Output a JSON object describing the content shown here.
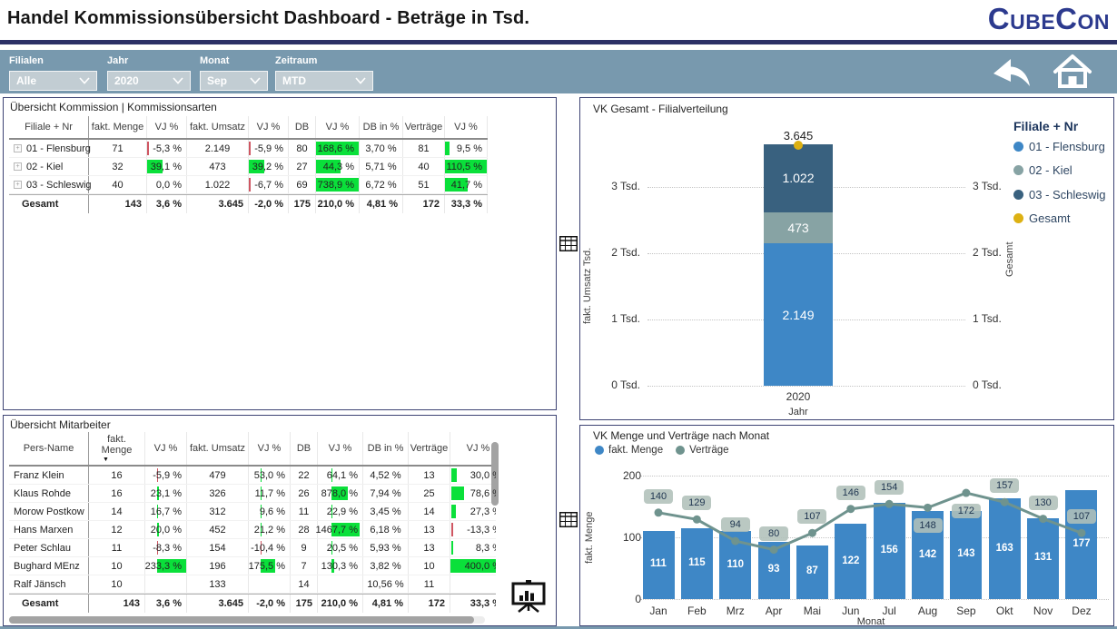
{
  "header": {
    "title": "Handel Kommissionsübersicht Dashboard - Beträge in Tsd.",
    "brand": "CubeCon"
  },
  "filters": [
    {
      "label": "Filialen",
      "value": "Alle"
    },
    {
      "label": "Jahr",
      "value": "2020"
    },
    {
      "label": "Monat",
      "value": "Sep"
    },
    {
      "label": "Zeitraum",
      "value": "MTD"
    }
  ],
  "table1": {
    "title": "Übersicht Kommission | Kommissionsarten",
    "columns": [
      "Filiale + Nr",
      "fakt. Menge",
      "VJ %",
      "fakt. Umsatz",
      "VJ %",
      "DB",
      "VJ %",
      "DB in %",
      "Verträge",
      "VJ %"
    ],
    "rows": [
      {
        "name": "01 - Flensburg",
        "cells": [
          "71",
          {
            "v": "-5,3 %",
            "b": [
              "red",
              0,
              5
            ]
          },
          "2.149",
          {
            "v": "-5,9 %",
            "b": [
              "red",
              0,
              5
            ]
          },
          "80",
          {
            "v": "168,6 %",
            "b": [
              "green",
              0,
              100
            ]
          },
          "3,70 %",
          "81",
          {
            "v": "9,5 %",
            "b": [
              "green",
              1,
              10
            ]
          }
        ]
      },
      {
        "name": "02 - Kiel",
        "cells": [
          "32",
          {
            "v": "39,1 %",
            "b": [
              "green",
              0,
              40
            ]
          },
          "473",
          {
            "v": "39,2 %",
            "b": [
              "green",
              0,
              40
            ]
          },
          "27",
          {
            "v": "44,3 %",
            "b": [
              "green",
              0,
              58
            ]
          },
          "5,71 %",
          "40",
          {
            "v": "110,5 %",
            "b": [
              "green",
              0,
              100
            ]
          }
        ]
      },
      {
        "name": "03 - Schleswig",
        "cells": [
          "40",
          {
            "v": "0,0 %"
          },
          "1.022",
          {
            "v": "-6,7 %",
            "b": [
              "red",
              0,
              5
            ]
          },
          "69",
          {
            "v": "738,9 %",
            "b": [
              "green",
              0,
              100
            ]
          },
          "6,72 %",
          "51",
          {
            "v": "41,7 %",
            "b": [
              "green",
              0,
              55
            ]
          }
        ]
      }
    ],
    "total": [
      "Gesamt",
      "143",
      "3,6 %",
      "3.645",
      "-2,0 %",
      "175",
      "210,0 %",
      "4,81 %",
      "172",
      "33,3 %"
    ]
  },
  "table2": {
    "title": "Übersicht Mitarbeiter",
    "columns": [
      "Pers-Name",
      "fakt. Menge",
      "VJ %",
      "fakt. Umsatz",
      "VJ %",
      "DB",
      "VJ %",
      "DB in %",
      "Verträge",
      "VJ %"
    ],
    "sort_column": "fakt. Menge",
    "rows": [
      {
        "name": "Franz Klein",
        "cells": [
          "16",
          {
            "v": "-5,9 %",
            "b": [
              "red",
              28,
              3
            ]
          },
          "479",
          {
            "v": "53,0 %",
            "b": [
              "green",
              28,
              4
            ]
          },
          "22",
          {
            "v": "64,1 %",
            "b": [
              "green",
              30,
              2
            ]
          },
          "4,52 %",
          "13",
          {
            "v": "30,0 %",
            "b": [
              "green",
              2,
              9
            ]
          }
        ]
      },
      {
        "name": "Klaus Rohde",
        "cells": [
          "16",
          {
            "v": "23,1 %",
            "b": [
              "green",
              28,
              5
            ]
          },
          "326",
          {
            "v": "11,7 %",
            "b": [
              "green",
              28,
              2
            ]
          },
          "26",
          {
            "v": "878,0 %",
            "b": [
              "green",
              30,
              38
            ]
          },
          "7,94 %",
          "25",
          {
            "v": "78,6 %",
            "b": [
              "green",
              2,
              22
            ]
          }
        ]
      },
      {
        "name": "Morow Postkow",
        "cells": [
          "14",
          {
            "v": "16,7 %",
            "b": [
              "green",
              28,
              4
            ]
          },
          "312",
          {
            "v": "9,6 %",
            "b": [
              "green",
              28,
              2
            ]
          },
          "11",
          {
            "v": "22,9 %",
            "b": [
              "green",
              30,
              2
            ]
          },
          "3,45 %",
          "14",
          {
            "v": "27,3 %",
            "b": [
              "green",
              2,
              8
            ]
          }
        ]
      },
      {
        "name": "Hans Marxen",
        "cells": [
          "12",
          {
            "v": "20,0 %",
            "b": [
              "green",
              28,
              5
            ]
          },
          "452",
          {
            "v": "21,2 %",
            "b": [
              "green",
              28,
              3
            ]
          },
          "28",
          {
            "v": "1467,7 %",
            "b": [
              "green",
              30,
              64
            ]
          },
          "6,18 %",
          "13",
          {
            "v": "-13,3 %",
            "b": [
              "red",
              2,
              3
            ]
          }
        ]
      },
      {
        "name": "Peter Schlau",
        "cells": [
          "11",
          {
            "v": "-8,3 %",
            "b": [
              "red",
              28,
              3
            ]
          },
          "154",
          {
            "v": "-10,4 %",
            "b": [
              "red",
              28,
              4
            ]
          },
          "9",
          {
            "v": "20,5 %",
            "b": [
              "green",
              30,
              2
            ]
          },
          "5,93 %",
          "13",
          {
            "v": "8,3 %",
            "b": [
              "green",
              2,
              3
            ]
          }
        ]
      },
      {
        "name": "Bughard MEnz",
        "cells": [
          "10",
          {
            "v": "233,3 %",
            "b": [
              "green",
              28,
              72
            ]
          },
          "196",
          {
            "v": "175,5 %",
            "b": [
              "green",
              28,
              36
            ]
          },
          "7",
          {
            "v": "130,3 %",
            "b": [
              "green",
              30,
              6
            ]
          },
          "3,82 %",
          "10",
          {
            "v": "400,0 %",
            "b": [
              "green",
              0,
              100
            ]
          }
        ]
      },
      {
        "name": "Ralf Jänsch",
        "cells": [
          "10",
          "",
          "133",
          "",
          "14",
          "",
          "10,56 %",
          "11",
          ""
        ]
      }
    ],
    "total": [
      "Gesamt",
      "143",
      "3,6 %",
      "3.645",
      "-2,0 %",
      "175",
      "210,0 %",
      "4,81 %",
      "172",
      "33,3 %"
    ]
  },
  "chart_data": [
    {
      "name": "vk_gesamt",
      "type": "bar",
      "stacked": true,
      "title": "VK Gesamt - Filialverteilung",
      "categories": [
        "2020"
      ],
      "xlabel": "Jahr",
      "ylabel": "fakt. Umsatz Tsd.",
      "ylabel_right": "Gesamt",
      "yticks": [
        "0 Tsd.",
        "1 Tsd.",
        "2 Tsd.",
        "3 Tsd."
      ],
      "ylim": [
        0,
        4000
      ],
      "series": [
        {
          "name": "01 - Flensburg",
          "values": [
            2149
          ],
          "label": "2.149",
          "color": "#3e87c6"
        },
        {
          "name": "02 - Kiel",
          "values": [
            473
          ],
          "label": "473",
          "color": "#87a3a4"
        },
        {
          "name": "03 - Schleswig",
          "values": [
            1022
          ],
          "label": "1.022",
          "color": "#39617f"
        }
      ],
      "total": {
        "name": "Gesamt",
        "value": 3645,
        "label": "3.645",
        "color": "#ddb113"
      },
      "legend_title": "Filiale + Nr",
      "legend": [
        {
          "label": "01 - Flensburg",
          "color": "#3e87c6"
        },
        {
          "label": "02 - Kiel",
          "color": "#87a3a4"
        },
        {
          "label": "03 - Schleswig",
          "color": "#39617f"
        },
        {
          "label": "Gesamt",
          "color": "#ddb113"
        }
      ]
    },
    {
      "name": "vk_monat",
      "type": "bar+line",
      "title": "VK Menge und Verträge nach Monat",
      "categories": [
        "Jan",
        "Feb",
        "Mrz",
        "Apr",
        "Mai",
        "Jun",
        "Jul",
        "Aug",
        "Sep",
        "Okt",
        "Nov",
        "Dez"
      ],
      "xlabel": "Monat",
      "ylabel": "fakt. Menge",
      "yticks": [
        0,
        100,
        200
      ],
      "ylim": [
        0,
        200
      ],
      "series": [
        {
          "name": "fakt. Menge",
          "type": "bar",
          "color": "#3e87c6",
          "values": [
            111,
            115,
            110,
            93,
            87,
            122,
            156,
            142,
            143,
            163,
            131,
            177
          ]
        },
        {
          "name": "Verträge",
          "type": "line",
          "color": "#6f938e",
          "values": [
            140,
            129,
            94,
            80,
            107,
            146,
            154,
            148,
            172,
            157,
            130,
            107
          ]
        }
      ],
      "label_below_points": [
        "Aug",
        "Sep"
      ]
    }
  ]
}
